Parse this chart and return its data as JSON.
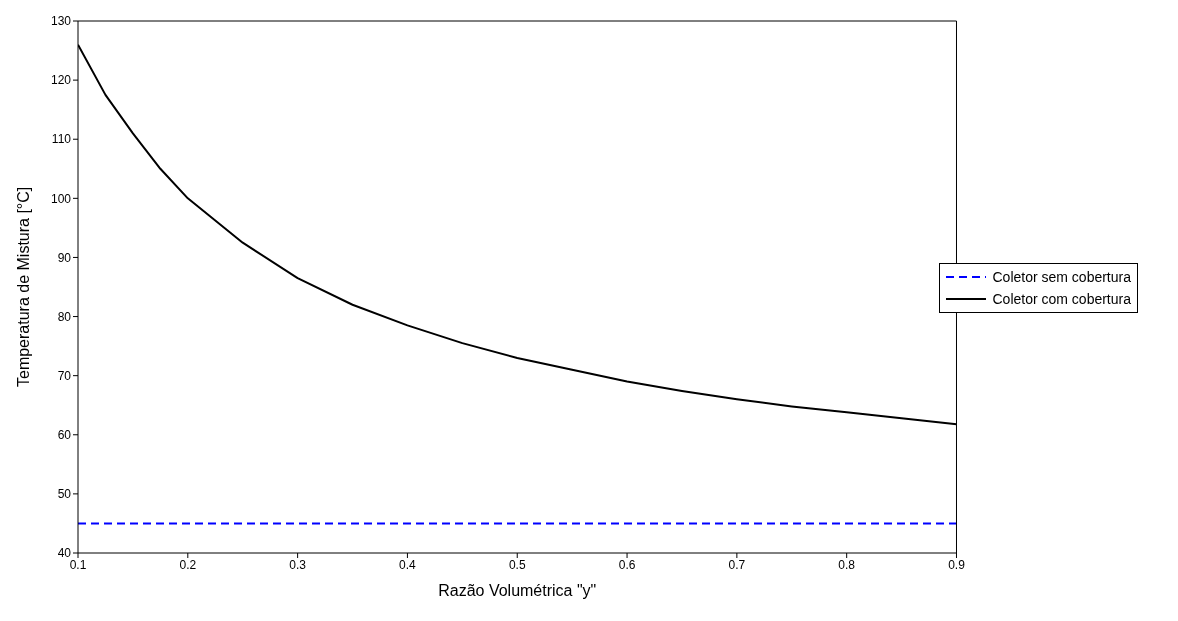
{
  "chart_data": {
    "type": "line",
    "xlabel": "Razão Volumétrica \"y\"",
    "ylabel": "Temperatura de Mistura [°C]",
    "xlim": [
      0.1,
      0.9
    ],
    "xticks": [
      0.1,
      0.2,
      0.3,
      0.4,
      0.5,
      0.6,
      0.7,
      0.8,
      0.9
    ],
    "ylim": [
      40,
      130
    ],
    "yticks": [
      40,
      50,
      60,
      70,
      80,
      90,
      100,
      110,
      120,
      130
    ],
    "legend": "right",
    "marker": "none",
    "series": [
      {
        "name": "Coletor sem cobertura",
        "color": "#0000ff",
        "line_style": "dashed",
        "x": [
          0.1,
          0.9
        ],
        "values": [
          45,
          45
        ]
      },
      {
        "name": "Coletor com cobertura",
        "color": "#000000",
        "line_style": "solid",
        "x": [
          0.1,
          0.125,
          0.15,
          0.175,
          0.2,
          0.25,
          0.3,
          0.35,
          0.4,
          0.45,
          0.5,
          0.55,
          0.6,
          0.65,
          0.7,
          0.75,
          0.8,
          0.85,
          0.9
        ],
        "values": [
          126,
          117.5,
          111,
          105,
          100,
          92.5,
          86.5,
          82,
          78.5,
          75.5,
          73,
          71,
          69,
          67.4,
          66,
          64.8,
          63.8,
          62.8,
          61.8
        ]
      }
    ]
  }
}
